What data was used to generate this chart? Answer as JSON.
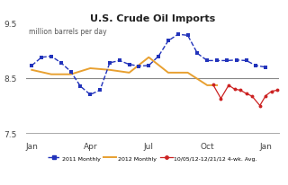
{
  "title": "U.S. Crude Oil Imports",
  "subtitle": "million barrels per day",
  "ylim": [
    7.5,
    9.5
  ],
  "yticks": [
    7.5,
    8.5,
    9.5
  ],
  "hline": 8.5,
  "xtick_labels": [
    "Jan",
    "Apr",
    "Jul",
    "Oct",
    "Jan"
  ],
  "xtick_positions": [
    0,
    3,
    6,
    9,
    12
  ],
  "line2011_x": [
    0,
    0.5,
    1,
    1.5,
    2,
    2.5,
    3,
    3.5,
    4,
    4.5,
    5,
    5.5,
    6,
    6.5,
    7,
    7.5,
    8,
    8.5,
    9,
    9.5,
    10,
    10.5,
    11,
    11.5,
    12
  ],
  "line2011_y": [
    8.73,
    8.88,
    8.9,
    8.78,
    8.62,
    8.35,
    8.2,
    8.28,
    8.78,
    8.82,
    8.75,
    8.72,
    8.73,
    8.9,
    9.18,
    9.3,
    9.28,
    8.95,
    8.82,
    8.82,
    8.82,
    8.83,
    8.82,
    8.73,
    8.7
  ],
  "line2012_x": [
    0,
    1,
    2,
    3,
    4,
    5,
    6,
    7,
    8,
    9,
    9.5
  ],
  "line2012_y": [
    8.65,
    8.57,
    8.57,
    8.68,
    8.65,
    8.6,
    8.88,
    8.6,
    8.6,
    8.37,
    8.37
  ],
  "line_4wk_x": [
    9.3,
    9.7,
    10.1,
    10.4,
    10.7,
    11.0,
    11.3,
    11.7,
    12.0,
    12.3,
    12.6
  ],
  "line_4wk_y": [
    8.38,
    8.13,
    8.37,
    8.3,
    8.28,
    8.22,
    8.17,
    8.0,
    8.18,
    8.26,
    8.28
  ],
  "color_2011": "#2233bb",
  "color_2012": "#e8a030",
  "color_4wk": "#cc2222",
  "bg_color": "#ffffff",
  "plot_bg": "#ffffff",
  "legend_labels": [
    "2011 Monthly",
    "2012 Monthly",
    "10/05/12-12/21/12 4-wk. Avg."
  ]
}
